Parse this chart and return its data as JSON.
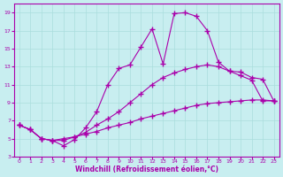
{
  "xlabel": "Windchill (Refroidissement éolien,°C)",
  "ylabel": "",
  "bg_color": "#c8eef0",
  "line_color": "#aa00aa",
  "grid_color": "#aadddd",
  "xlim": [
    -0.5,
    23.5
  ],
  "ylim": [
    3,
    20
  ],
  "xticks": [
    0,
    1,
    2,
    3,
    4,
    5,
    6,
    7,
    8,
    9,
    10,
    11,
    12,
    13,
    14,
    15,
    16,
    17,
    18,
    19,
    20,
    21,
    22,
    23
  ],
  "yticks": [
    3,
    5,
    7,
    9,
    11,
    13,
    15,
    17,
    19
  ],
  "curve1_x": [
    0,
    1,
    2,
    3,
    4,
    5,
    6,
    7,
    8,
    9,
    10,
    11,
    12,
    13,
    14,
    15,
    16,
    17,
    18,
    19,
    20,
    21,
    22,
    23
  ],
  "curve1_y": [
    6.5,
    6.0,
    5.0,
    4.8,
    4.2,
    4.9,
    6.2,
    8.0,
    11.0,
    12.8,
    13.2,
    15.2,
    17.2,
    13.3,
    18.9,
    19.0,
    18.6,
    17.0,
    13.5,
    12.5,
    12.0,
    11.5,
    9.2,
    9.2
  ],
  "curve2_x": [
    0,
    1,
    2,
    3,
    4,
    5,
    6,
    7,
    8,
    9,
    10,
    11,
    12,
    13,
    14,
    15,
    16,
    17,
    18,
    19,
    20,
    21,
    22,
    23
  ],
  "curve2_y": [
    6.5,
    6.0,
    5.0,
    4.8,
    5.0,
    5.2,
    5.7,
    6.5,
    7.2,
    8.0,
    9.0,
    10.0,
    11.0,
    11.8,
    12.3,
    12.7,
    13.0,
    13.2,
    13.0,
    12.5,
    12.4,
    11.8,
    11.6,
    9.2
  ],
  "curve3_x": [
    0,
    1,
    2,
    3,
    4,
    5,
    6,
    7,
    8,
    9,
    10,
    11,
    12,
    13,
    14,
    15,
    16,
    17,
    18,
    19,
    20,
    21,
    22,
    23
  ],
  "curve3_y": [
    6.5,
    6.0,
    5.0,
    4.8,
    4.8,
    5.2,
    5.5,
    5.8,
    6.2,
    6.5,
    6.8,
    7.2,
    7.5,
    7.8,
    8.1,
    8.4,
    8.7,
    8.9,
    9.0,
    9.1,
    9.2,
    9.3,
    9.3,
    9.2
  ]
}
